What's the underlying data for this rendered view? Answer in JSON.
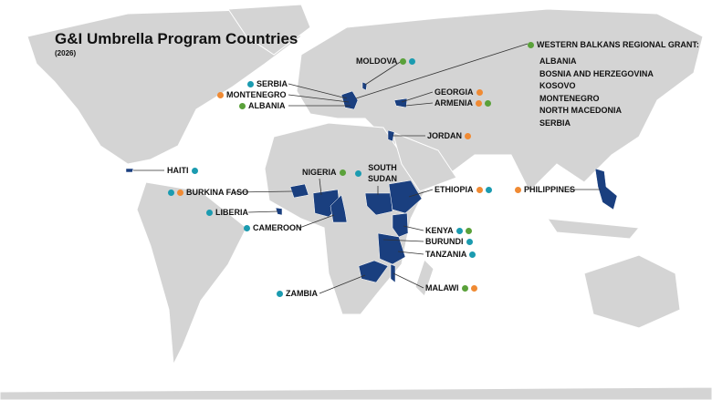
{
  "title": "G&I Umbrella Program Countries",
  "subtitle": "(2026)",
  "dot_colors": {
    "green": "#5aa13a",
    "teal": "#1b9bb0",
    "orange": "#f08a33"
  },
  "labels": [
    {
      "text": "MOLDOVA",
      "dots": [
        "green",
        "teal"
      ]
    },
    {
      "text": "SERBIA",
      "dots": [
        "teal"
      ]
    },
    {
      "text": "MONTENEGRO",
      "dots": [
        "orange"
      ]
    },
    {
      "text": "ALBANIA",
      "dots": [
        "green"
      ]
    },
    {
      "text": "GEORGIA",
      "dots": [
        "orange"
      ]
    },
    {
      "text": "ARMENIA",
      "dots": [
        "orange",
        "green"
      ]
    },
    {
      "text": "JORDAN",
      "dots": [
        "orange"
      ]
    },
    {
      "text": "HAITI",
      "dots": [
        "teal"
      ]
    },
    {
      "text": "NIGERIA",
      "dots": [
        "green"
      ]
    },
    {
      "text": "SOUTH SUDAN",
      "dots": [
        "teal"
      ]
    },
    {
      "text": "BURKINA FASO",
      "dots": [
        "teal",
        "orange"
      ]
    },
    {
      "text": "ETHIOPIA",
      "dots": [
        "orange",
        "teal"
      ]
    },
    {
      "text": "PHILIPPINES",
      "dots": [
        "orange"
      ]
    },
    {
      "text": "LIBERIA",
      "dots": [
        "teal"
      ]
    },
    {
      "text": "CAMEROON",
      "dots": [
        "teal"
      ]
    },
    {
      "text": "KENYA",
      "dots": [
        "teal",
        "green"
      ]
    },
    {
      "text": "BURUNDI",
      "dots": [
        "teal"
      ]
    },
    {
      "text": "TANZANIA",
      "dots": [
        "teal"
      ]
    },
    {
      "text": "ZAMBIA",
      "dots": [
        "teal"
      ]
    },
    {
      "text": "MALAWI",
      "dots": [
        "green",
        "orange"
      ]
    }
  ],
  "regional_grant": {
    "heading": "WESTERN BALKANS REGIONAL GRANT:",
    "dot": "green",
    "countries": [
      "ALBANIA",
      "BOSNIA AND HERZEGOVINA",
      "KOSOVO",
      "MONTENEGRO",
      "NORTH MACEDONIA",
      "SERBIA"
    ]
  }
}
